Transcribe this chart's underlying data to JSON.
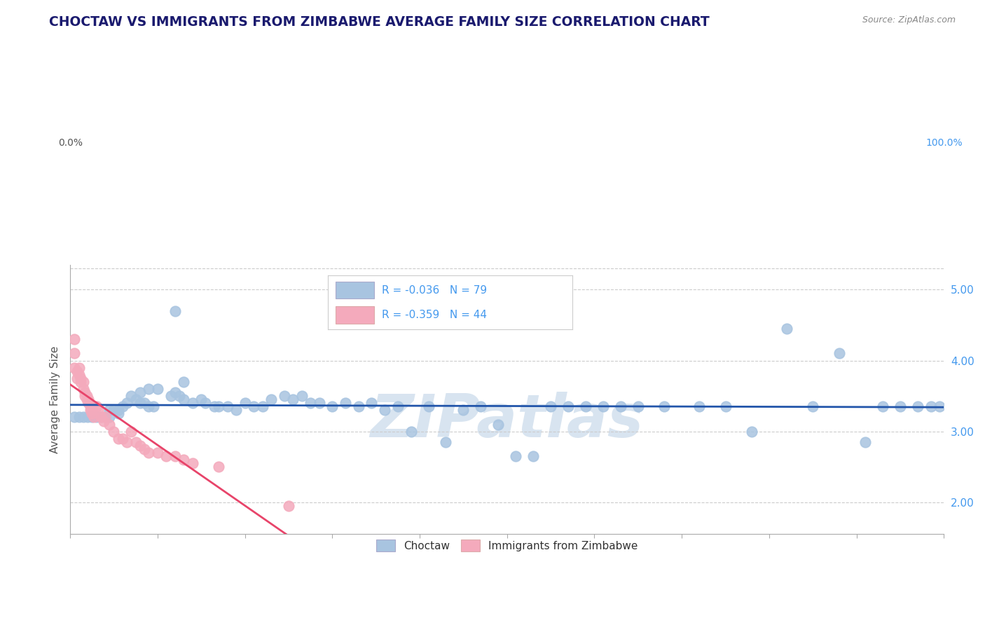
{
  "title": "CHOCTAW VS IMMIGRANTS FROM ZIMBABWE AVERAGE FAMILY SIZE CORRELATION CHART",
  "source": "Source: ZipAtlas.com",
  "ylabel": "Average Family Size",
  "legend_label1": "Choctaw",
  "legend_label2": "Immigrants from Zimbabwe",
  "r1": "-0.036",
  "n1": "79",
  "r2": "-0.359",
  "n2": "44",
  "blue_scatter_color": "#A8C4E0",
  "pink_scatter_color": "#F4AABC",
  "trend_blue": "#2255AA",
  "trend_pink": "#E8446A",
  "dashed_color": "#E8AABB",
  "right_axis_color": "#4499EE",
  "title_color": "#1a1a6e",
  "legend_text_color": "#222222",
  "legend_rn_color": "#4499EE",
  "yticks_right": [
    2.0,
    3.0,
    4.0,
    5.0
  ],
  "xlim": [
    0.0,
    1.0
  ],
  "ylim": [
    1.55,
    5.35
  ],
  "blue_scatter_x": [
    0.115,
    0.12,
    0.13,
    0.09,
    0.1,
    0.08,
    0.07,
    0.075,
    0.08,
    0.085,
    0.09,
    0.095,
    0.065,
    0.055,
    0.06,
    0.045,
    0.05,
    0.055,
    0.045,
    0.04,
    0.035,
    0.03,
    0.025,
    0.02,
    0.015,
    0.01,
    0.005,
    0.12,
    0.125,
    0.13,
    0.14,
    0.15,
    0.155,
    0.165,
    0.17,
    0.18,
    0.19,
    0.2,
    0.21,
    0.22,
    0.23,
    0.245,
    0.255,
    0.265,
    0.275,
    0.285,
    0.3,
    0.315,
    0.33,
    0.345,
    0.36,
    0.375,
    0.39,
    0.41,
    0.43,
    0.45,
    0.47,
    0.49,
    0.51,
    0.53,
    0.55,
    0.57,
    0.59,
    0.61,
    0.63,
    0.65,
    0.68,
    0.72,
    0.75,
    0.78,
    0.82,
    0.85,
    0.88,
    0.91,
    0.93,
    0.95,
    0.97,
    0.985,
    0.995
  ],
  "blue_scatter_y": [
    3.5,
    4.7,
    3.7,
    3.6,
    3.6,
    3.55,
    3.5,
    3.45,
    3.4,
    3.4,
    3.35,
    3.35,
    3.4,
    3.3,
    3.35,
    3.3,
    3.3,
    3.25,
    3.2,
    3.2,
    3.2,
    3.2,
    3.2,
    3.2,
    3.2,
    3.2,
    3.2,
    3.55,
    3.5,
    3.45,
    3.4,
    3.45,
    3.4,
    3.35,
    3.35,
    3.35,
    3.3,
    3.4,
    3.35,
    3.35,
    3.45,
    3.5,
    3.45,
    3.5,
    3.4,
    3.4,
    3.35,
    3.4,
    3.35,
    3.4,
    3.3,
    3.35,
    3.0,
    3.35,
    2.85,
    3.3,
    3.35,
    3.1,
    2.65,
    2.65,
    3.35,
    3.35,
    3.35,
    3.35,
    3.35,
    3.35,
    3.35,
    3.35,
    3.35,
    3.0,
    4.45,
    3.35,
    4.1,
    2.85,
    3.35,
    3.35,
    3.35,
    3.35,
    3.35
  ],
  "pink_scatter_x": [
    0.005,
    0.005,
    0.005,
    0.008,
    0.008,
    0.01,
    0.01,
    0.012,
    0.012,
    0.015,
    0.015,
    0.017,
    0.017,
    0.019,
    0.019,
    0.021,
    0.021,
    0.023,
    0.023,
    0.025,
    0.025,
    0.027,
    0.03,
    0.032,
    0.035,
    0.038,
    0.04,
    0.045,
    0.05,
    0.055,
    0.06,
    0.065,
    0.07,
    0.075,
    0.08,
    0.085,
    0.09,
    0.1,
    0.11,
    0.12,
    0.13,
    0.14,
    0.17,
    0.25
  ],
  "pink_scatter_y": [
    4.3,
    4.1,
    3.9,
    3.85,
    3.75,
    3.9,
    3.8,
    3.75,
    3.7,
    3.7,
    3.6,
    3.55,
    3.5,
    3.5,
    3.45,
    3.45,
    3.4,
    3.35,
    3.3,
    3.3,
    3.25,
    3.2,
    3.35,
    3.3,
    3.2,
    3.15,
    3.2,
    3.1,
    3.0,
    2.9,
    2.9,
    2.85,
    3.0,
    2.85,
    2.8,
    2.75,
    2.7,
    2.7,
    2.65,
    2.65,
    2.6,
    2.55,
    2.5,
    1.95
  ],
  "watermark": "ZIPatlas",
  "watermark_color": "#D8E4F0"
}
